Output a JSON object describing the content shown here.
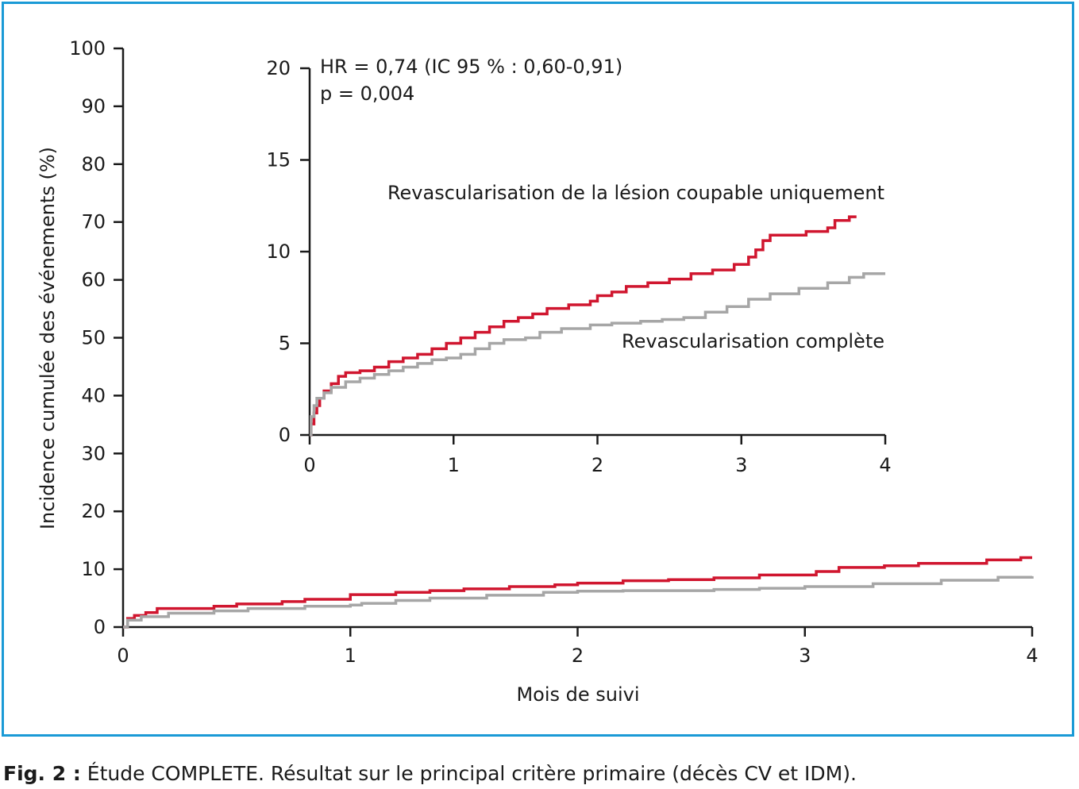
{
  "caption": {
    "label": "Fig. 2 :",
    "text": " Étude COMPLETE. Résultat sur le principal critère primaire (décès CV et IDM)."
  },
  "colors": {
    "frame": "#1a9ad6",
    "culprit": "#d0162f",
    "complete": "#a6a6a6",
    "axis": "#1a1a1a"
  },
  "chart_data": [
    {
      "type": "line",
      "panel": "main",
      "title": "",
      "xlabel": "Mois de suivi",
      "ylabel": "Incidence cumulée des événements (%)",
      "xlim": [
        0,
        4
      ],
      "ylim": [
        0,
        100
      ],
      "x_ticks": [
        "0",
        "1",
        "2",
        "3",
        "4"
      ],
      "y_ticks": [
        "0",
        "10",
        "20",
        "30",
        "40",
        "50",
        "60",
        "70",
        "80",
        "90",
        "100"
      ],
      "step": true,
      "series": [
        {
          "color": "#d0162f",
          "points": [
            [
              0,
              0
            ],
            [
              0.02,
              1.5
            ],
            [
              0.05,
              2.0
            ],
            [
              0.1,
              2.5
            ],
            [
              0.15,
              3.2
            ],
            [
              0.4,
              3.6
            ],
            [
              0.5,
              4.0
            ],
            [
              0.7,
              4.4
            ],
            [
              0.8,
              4.8
            ],
            [
              1.0,
              5.6
            ],
            [
              1.2,
              6.0
            ],
            [
              1.35,
              6.3
            ],
            [
              1.5,
              6.6
            ],
            [
              1.7,
              7.0
            ],
            [
              1.9,
              7.3
            ],
            [
              2.0,
              7.6
            ],
            [
              2.2,
              8.0
            ],
            [
              2.4,
              8.2
            ],
            [
              2.6,
              8.5
            ],
            [
              2.8,
              9.0
            ],
            [
              3.0,
              9.0
            ],
            [
              3.05,
              9.6
            ],
            [
              3.15,
              10.3
            ],
            [
              3.35,
              10.6
            ],
            [
              3.5,
              11.0
            ],
            [
              3.8,
              11.6
            ],
            [
              3.95,
              12.0
            ],
            [
              4.0,
              12.0
            ]
          ]
        },
        {
          "color": "#a6a6a6",
          "points": [
            [
              0,
              0
            ],
            [
              0.02,
              1.2
            ],
            [
              0.08,
              1.8
            ],
            [
              0.2,
              2.4
            ],
            [
              0.4,
              2.8
            ],
            [
              0.55,
              3.2
            ],
            [
              0.8,
              3.6
            ],
            [
              1.0,
              3.8
            ],
            [
              1.05,
              4.1
            ],
            [
              1.2,
              4.6
            ],
            [
              1.35,
              5.0
            ],
            [
              1.6,
              5.5
            ],
            [
              1.85,
              6.0
            ],
            [
              2.0,
              6.2
            ],
            [
              2.2,
              6.3
            ],
            [
              2.6,
              6.5
            ],
            [
              2.8,
              6.7
            ],
            [
              3.0,
              7.0
            ],
            [
              3.3,
              7.5
            ],
            [
              3.6,
              8.1
            ],
            [
              3.85,
              8.6
            ],
            [
              4.0,
              8.8
            ]
          ]
        }
      ]
    },
    {
      "type": "line",
      "panel": "inset",
      "title": "",
      "xlim": [
        0,
        4
      ],
      "ylim": [
        0,
        20
      ],
      "x_ticks": [
        "0",
        "1",
        "2",
        "3",
        "4"
      ],
      "y_ticks": [
        "0",
        "5",
        "10",
        "15",
        "20"
      ],
      "step": true,
      "annotations": {
        "hr": "HR = 0,74 (IC 95 % : 0,60-0,91)",
        "p": "p = 0,004"
      },
      "series": [
        {
          "name": "Revascularisation de la lésion coupable uniquement",
          "color": "#d0162f",
          "points": [
            [
              0,
              0
            ],
            [
              0.01,
              0.6
            ],
            [
              0.03,
              1.2
            ],
            [
              0.05,
              1.6
            ],
            [
              0.07,
              2.0
            ],
            [
              0.1,
              2.4
            ],
            [
              0.15,
              2.8
            ],
            [
              0.2,
              3.2
            ],
            [
              0.25,
              3.4
            ],
            [
              0.35,
              3.5
            ],
            [
              0.45,
              3.7
            ],
            [
              0.55,
              4.0
            ],
            [
              0.65,
              4.2
            ],
            [
              0.75,
              4.4
            ],
            [
              0.85,
              4.7
            ],
            [
              0.95,
              5.0
            ],
            [
              1.05,
              5.3
            ],
            [
              1.15,
              5.6
            ],
            [
              1.25,
              5.9
            ],
            [
              1.35,
              6.2
            ],
            [
              1.45,
              6.4
            ],
            [
              1.55,
              6.6
            ],
            [
              1.65,
              6.9
            ],
            [
              1.8,
              7.1
            ],
            [
              1.95,
              7.3
            ],
            [
              2.0,
              7.6
            ],
            [
              2.1,
              7.8
            ],
            [
              2.2,
              8.1
            ],
            [
              2.35,
              8.3
            ],
            [
              2.5,
              8.5
            ],
            [
              2.65,
              8.8
            ],
            [
              2.8,
              9.0
            ],
            [
              2.95,
              9.3
            ],
            [
              3.05,
              9.7
            ],
            [
              3.1,
              10.1
            ],
            [
              3.15,
              10.6
            ],
            [
              3.2,
              10.9
            ],
            [
              3.45,
              11.1
            ],
            [
              3.6,
              11.3
            ],
            [
              3.65,
              11.7
            ],
            [
              3.75,
              11.9
            ],
            [
              3.8,
              11.9
            ]
          ]
        },
        {
          "name": "Revascularisation complète",
          "color": "#a6a6a6",
          "points": [
            [
              0,
              0
            ],
            [
              0.01,
              1.0
            ],
            [
              0.03,
              1.6
            ],
            [
              0.05,
              2.0
            ],
            [
              0.1,
              2.3
            ],
            [
              0.15,
              2.6
            ],
            [
              0.25,
              2.9
            ],
            [
              0.35,
              3.1
            ],
            [
              0.45,
              3.3
            ],
            [
              0.55,
              3.5
            ],
            [
              0.65,
              3.7
            ],
            [
              0.75,
              3.9
            ],
            [
              0.85,
              4.1
            ],
            [
              0.95,
              4.2
            ],
            [
              1.05,
              4.4
            ],
            [
              1.15,
              4.7
            ],
            [
              1.25,
              5.0
            ],
            [
              1.35,
              5.2
            ],
            [
              1.5,
              5.3
            ],
            [
              1.6,
              5.6
            ],
            [
              1.75,
              5.8
            ],
            [
              1.95,
              6.0
            ],
            [
              2.1,
              6.1
            ],
            [
              2.3,
              6.2
            ],
            [
              2.45,
              6.3
            ],
            [
              2.6,
              6.4
            ],
            [
              2.75,
              6.7
            ],
            [
              2.9,
              7.0
            ],
            [
              3.05,
              7.4
            ],
            [
              3.2,
              7.7
            ],
            [
              3.4,
              8.0
            ],
            [
              3.6,
              8.3
            ],
            [
              3.75,
              8.6
            ],
            [
              3.85,
              8.8
            ],
            [
              4.0,
              8.8
            ]
          ]
        }
      ]
    }
  ]
}
